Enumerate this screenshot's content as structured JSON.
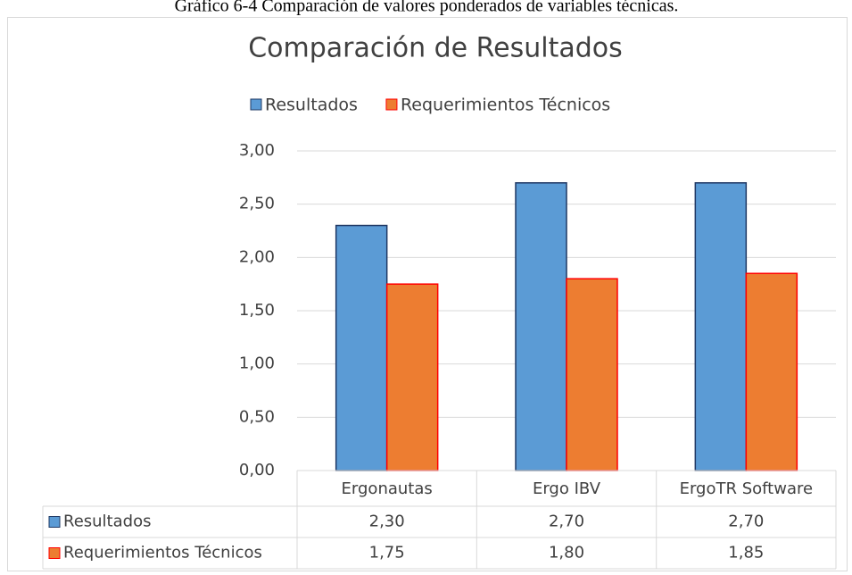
{
  "chart_data": {
    "type": "bar",
    "caption": "Gráfico 6-4 Comparación de valores ponderados de variables técnicas.",
    "title": "Comparación de Resultados",
    "categories": [
      "Ergonautas",
      "Ergo IBV",
      "ErgoTR Software"
    ],
    "series": [
      {
        "name": "Resultados",
        "color": "#5b9bd5",
        "edge": "#1f3864",
        "values": [
          2.3,
          2.7,
          2.7
        ],
        "value_labels": [
          "2,30",
          "2,70",
          "2,70"
        ]
      },
      {
        "name": "Requerimientos Técnicos",
        "color": "#ed7d31",
        "edge": "#ff0000",
        "values": [
          1.75,
          1.8,
          1.85
        ],
        "value_labels": [
          "1,75",
          "1,80",
          "1,85"
        ]
      }
    ],
    "ylim": [
      0,
      3
    ],
    "yticks": [
      {
        "value": 0,
        "label": "0,00"
      },
      {
        "value": 0.5,
        "label": "0,50"
      },
      {
        "value": 1,
        "label": "1,00"
      },
      {
        "value": 1.5,
        "label": "1,50"
      },
      {
        "value": 2,
        "label": "2,00"
      },
      {
        "value": 2.5,
        "label": "2,50"
      },
      {
        "value": 3,
        "label": "3,00"
      }
    ],
    "grid": true,
    "legend": "top"
  }
}
